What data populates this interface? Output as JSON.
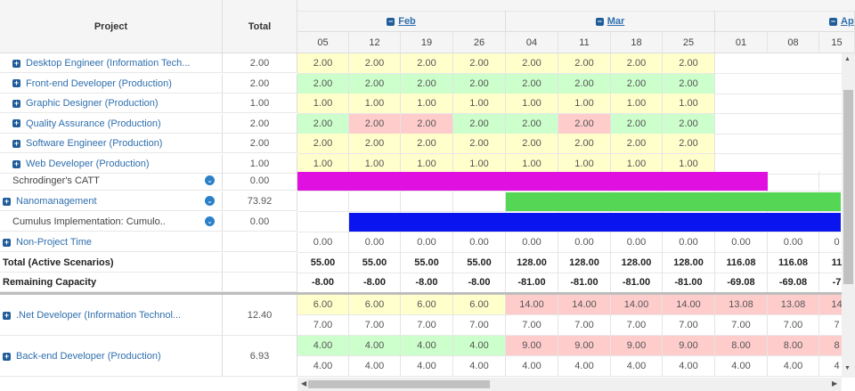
{
  "header": {
    "project_label": "Project",
    "total_label": "Total",
    "months": [
      {
        "label": "Feb"
      },
      {
        "label": "Mar"
      },
      {
        "label": "Ap"
      }
    ],
    "weeks": [
      "05",
      "12",
      "19",
      "26",
      "04",
      "11",
      "18",
      "25",
      "01",
      "08",
      "15"
    ]
  },
  "rows": [
    {
      "label": "Desktop Engineer (Information Tech...",
      "total": "2.00",
      "values": [
        "2.00",
        "2.00",
        "2.00",
        "2.00",
        "2.00",
        "2.00",
        "2.00",
        "2.00"
      ],
      "colors": [
        "y",
        "y",
        "y",
        "y",
        "y",
        "y",
        "y",
        "y"
      ]
    },
    {
      "label": "Front-end Developer (Production)",
      "total": "2.00",
      "values": [
        "2.00",
        "2.00",
        "2.00",
        "2.00",
        "2.00",
        "2.00",
        "2.00",
        "2.00"
      ],
      "colors": [
        "g",
        "g",
        "g",
        "g",
        "g",
        "g",
        "g",
        "g"
      ]
    },
    {
      "label": "Graphic Designer (Production)",
      "total": "1.00",
      "values": [
        "1.00",
        "1.00",
        "1.00",
        "1.00",
        "1.00",
        "1.00",
        "1.00",
        "1.00"
      ],
      "colors": [
        "y",
        "y",
        "y",
        "y",
        "y",
        "y",
        "y",
        "y"
      ]
    },
    {
      "label": "Quality Assurance (Production)",
      "total": "2.00",
      "values": [
        "2.00",
        "2.00",
        "2.00",
        "2.00",
        "2.00",
        "2.00",
        "2.00",
        "2.00"
      ],
      "colors": [
        "g",
        "r",
        "r",
        "g",
        "g",
        "r",
        "g",
        "g"
      ]
    },
    {
      "label": "Software Engineer (Production)",
      "total": "2.00",
      "values": [
        "2.00",
        "2.00",
        "2.00",
        "2.00",
        "2.00",
        "2.00",
        "2.00",
        "2.00"
      ],
      "colors": [
        "y",
        "y",
        "y",
        "y",
        "y",
        "y",
        "y",
        "y"
      ]
    },
    {
      "label": "Web Developer (Production)",
      "total": "1.00",
      "values": [
        "1.00",
        "1.00",
        "1.00",
        "1.00",
        "1.00",
        "1.00",
        "1.00",
        "1.00"
      ],
      "colors": [
        "y",
        "y",
        "y",
        "y",
        "y",
        "y",
        "y",
        "y"
      ]
    }
  ],
  "projects": [
    {
      "label": "Schrodinger's CATT",
      "total": "0.00",
      "bar_color": "#e010e0"
    },
    {
      "label": "Nanomanagement",
      "total": "73.92",
      "bar_color": "#55d655"
    },
    {
      "label": "Cumulus Implementation: Cumulo..",
      "total": "0.00",
      "bar_color": "#0a14ee"
    }
  ],
  "non_project": {
    "label": "Non-Project Time",
    "values": [
      "0.00",
      "0.00",
      "0.00",
      "0.00",
      "0.00",
      "0.00",
      "0.00",
      "0.00",
      "0.00",
      "0.00",
      "0"
    ]
  },
  "totals": {
    "label": "Total (Active Scenarios)",
    "values": [
      "55.00",
      "55.00",
      "55.00",
      "55.00",
      "128.00",
      "128.00",
      "128.00",
      "128.00",
      "116.08",
      "116.08",
      "11"
    ]
  },
  "remaining": {
    "label": "Remaining Capacity",
    "values": [
      "-8.00",
      "-8.00",
      "-8.00",
      "-8.00",
      "-81.00",
      "-81.00",
      "-81.00",
      "-81.00",
      "-69.08",
      "-69.08",
      "-7"
    ]
  },
  "roles": [
    {
      "label": ".Net Developer (Information Technol...",
      "total": "12.40",
      "line1": [
        "6.00",
        "6.00",
        "6.00",
        "6.00",
        "14.00",
        "14.00",
        "14.00",
        "14.00",
        "13.08",
        "13.08",
        "14"
      ],
      "colors1": [
        "y",
        "y",
        "y",
        "y",
        "r",
        "r",
        "r",
        "r",
        "r",
        "r",
        "r"
      ],
      "line2": [
        "7.00",
        "7.00",
        "7.00",
        "7.00",
        "7.00",
        "7.00",
        "7.00",
        "7.00",
        "7.00",
        "7.00",
        "7"
      ]
    },
    {
      "label": "Back-end Developer (Production)",
      "total": "6.93",
      "line1": [
        "4.00",
        "4.00",
        "4.00",
        "4.00",
        "9.00",
        "9.00",
        "9.00",
        "9.00",
        "8.00",
        "8.00",
        "8"
      ],
      "colors1": [
        "g",
        "g",
        "g",
        "g",
        "r",
        "r",
        "r",
        "r",
        "r",
        "r",
        "r"
      ],
      "line2": [
        "4.00",
        "4.00",
        "4.00",
        "4.00",
        "4.00",
        "4.00",
        "4.00",
        "4.00",
        "4.00",
        "4.00",
        "4"
      ]
    }
  ],
  "colors": {
    "accent": "#2f6fae",
    "yellow": "#ffffcc",
    "green": "#ccffcc",
    "red": "#ffcccc"
  }
}
